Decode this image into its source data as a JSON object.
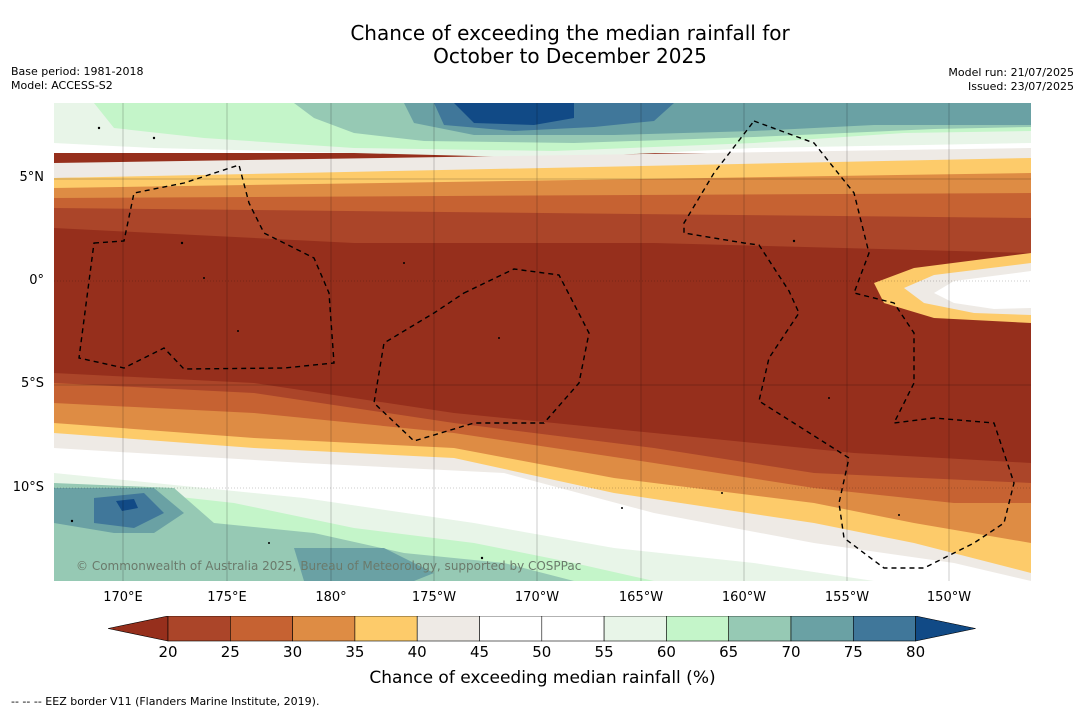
{
  "title_line1": "Chance of exceeding the median rainfall for",
  "title_line2": "October to December 2025",
  "base_period": "Base period: 1981-2018",
  "model": "Model: ACCESS-S2",
  "model_run": "Model run: 21/07/2025",
  "issued": "Issued: 23/07/2025",
  "copyright": "© Commonwealth of Australia 2025, Bureau of Meteorology, supported by COSPPac",
  "lat_labels": [
    "5°N",
    "0°",
    "5°S",
    "10°S"
  ],
  "lon_labels": [
    "170°E",
    "175°E",
    "180°",
    "175°W",
    "170°W",
    "165°W",
    "160°W",
    "155°W",
    "150°W"
  ],
  "colorbar": {
    "ticks": [
      "20",
      "25",
      "30",
      "35",
      "40",
      "45",
      "50",
      "55",
      "60",
      "65",
      "70",
      "75",
      "80"
    ],
    "colors": [
      "#962f1c",
      "#ab4529",
      "#c66232",
      "#de8c44",
      "#fdcb6a",
      "#eeeae5",
      "#ffffff",
      "#ffffff",
      "#e8f5e8",
      "#c4f5c9",
      "#96c9b4",
      "#6aa1a4",
      "#40779a",
      "#114a86"
    ],
    "label": "Chance of exceeding median rainfall (%)"
  },
  "footnote": "--  --  -- EEZ border V11 (Flanders Marine Institute, 2019)."
}
